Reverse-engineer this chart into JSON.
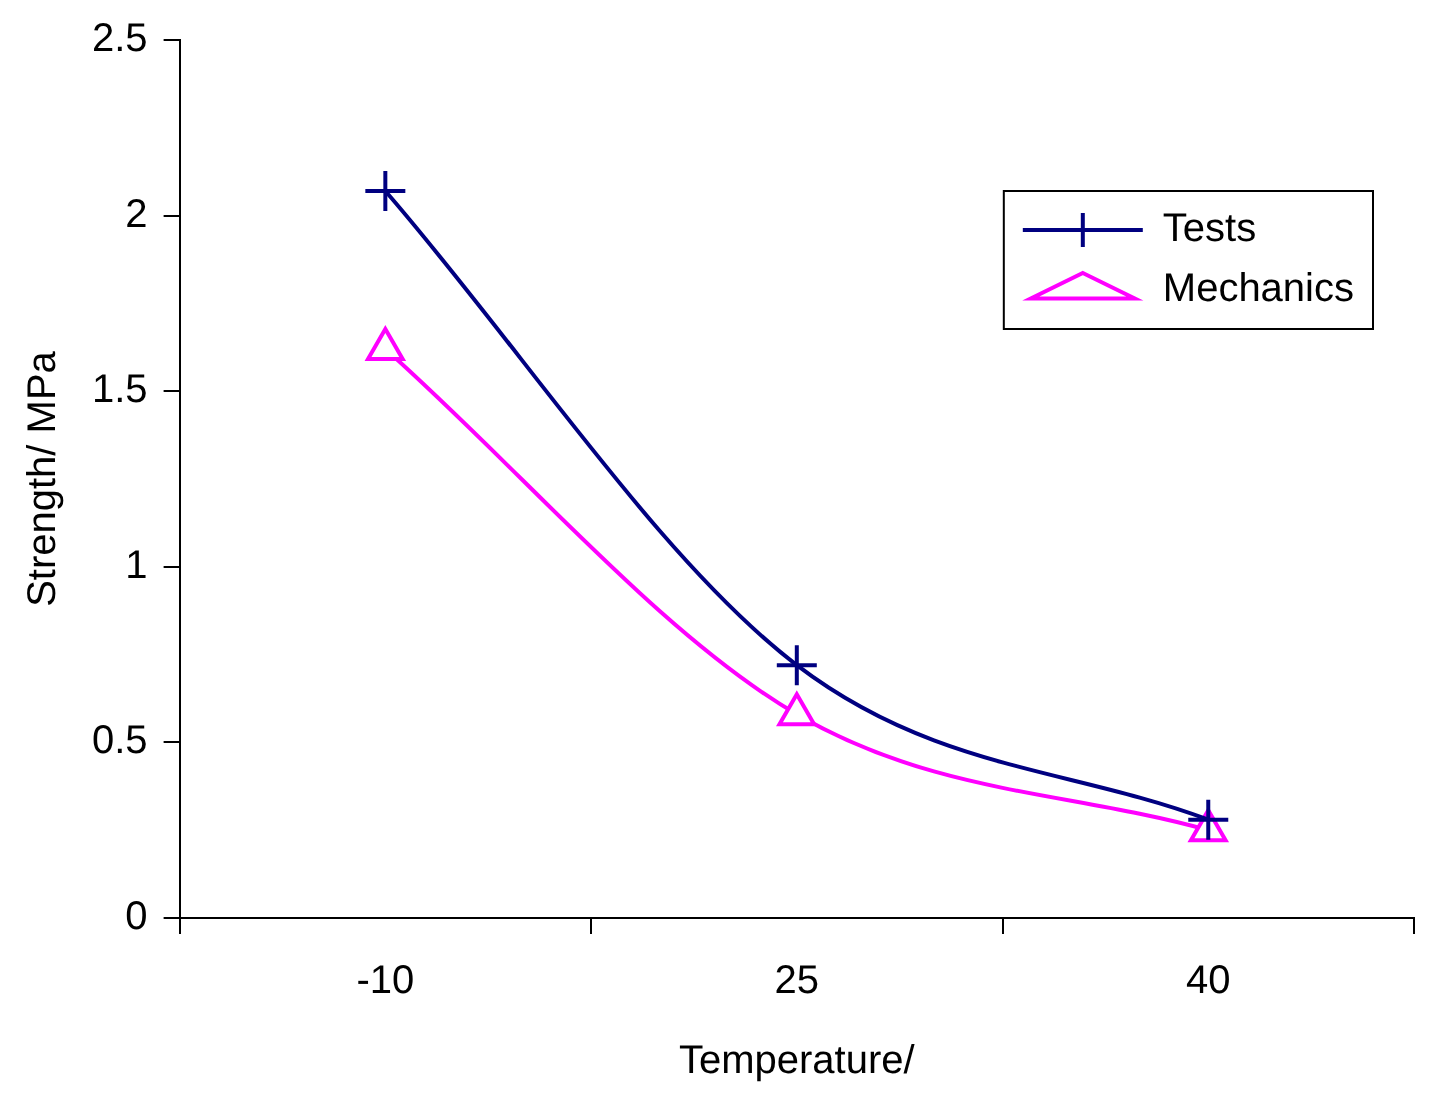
{
  "chart_data": {
    "type": "line",
    "xlabel": "Temperature/",
    "ylabel": "Strength/ MPa",
    "categories": [
      "-10",
      "25",
      "40"
    ],
    "series": [
      {
        "name": "Tests",
        "color": "#000080",
        "marker": "cross",
        "values": [
          2.07,
          0.72,
          0.28
        ]
      },
      {
        "name": "Mechanics",
        "color": "#ff00ff",
        "marker": "triangle",
        "values": [
          1.62,
          0.58,
          0.25
        ]
      }
    ],
    "ylim": [
      0,
      2.5
    ],
    "yticks": [
      0,
      0.5,
      1,
      1.5,
      2,
      2.5
    ],
    "grid": false,
    "legend": "top right"
  }
}
